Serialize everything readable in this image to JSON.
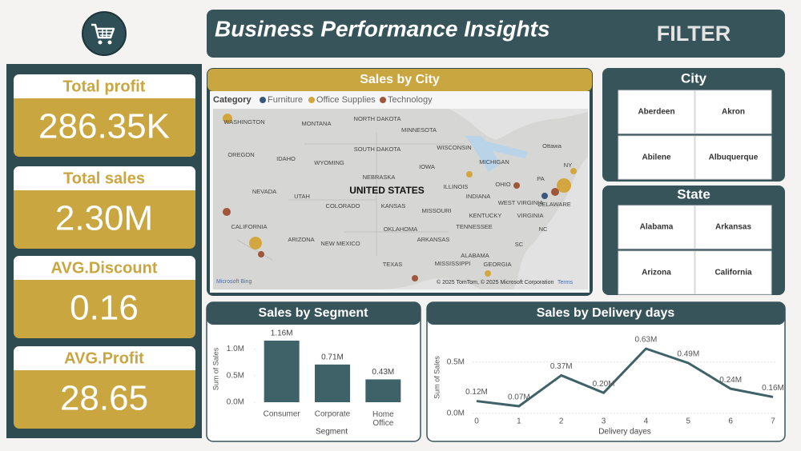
{
  "header": {
    "title": "Business Performance Insights",
    "filter": "FILTER"
  },
  "kpis": [
    {
      "label": "Total profit",
      "value": "286.35K"
    },
    {
      "label": "Total sales",
      "value": "2.30M"
    },
    {
      "label": "AVG.Discount",
      "value": "0.16"
    },
    {
      "label": "AVG.Profit",
      "value": "28.65"
    }
  ],
  "map": {
    "title": "Sales by City",
    "legend_title": "Category",
    "legend": [
      {
        "name": "Furniture",
        "color": "#39577a"
      },
      {
        "name": "Office Supplies",
        "color": "#d4a640"
      },
      {
        "name": "Technology",
        "color": "#a0563a"
      }
    ],
    "labels": [
      "WASHINGTON",
      "MONTANA",
      "NORTH DAKOTA",
      "MINNESOTA",
      "OREGON",
      "IDAHO",
      "SOUTH DAKOTA",
      "WISCONSIN",
      "Ottawa",
      "WYOMING",
      "MICHIGAN",
      "NEBRASKA",
      "IOWA",
      "NEVADA",
      "UTAH",
      "UNITED STATES",
      "ILLINOIS",
      "INDIANA",
      "OHIO",
      "PA",
      "NY",
      "COLORADO",
      "KANSAS",
      "MISSOURI",
      "WEST VIRGINIA",
      "KENTUCKY",
      "VIRGINIA",
      "DELAWARE",
      "CALIFORNIA",
      "OKLAHOMA",
      "TENNESSEE",
      "NC",
      "ARIZONA",
      "NEW MEXICO",
      "ARKANSAS",
      "SC",
      "TEXAS",
      "MISSISSIPPI",
      "ALABAMA",
      "GEORGIA"
    ],
    "attribution": "© 2025 TomTom, © 2025 Microsoft Corporation",
    "terms": "Terms",
    "provider": "Microsoft Bing"
  },
  "city_filter": {
    "title": "City",
    "options": [
      "Aberdeen",
      "Akron",
      "Abilene",
      "Albuquerque"
    ]
  },
  "state_filter": {
    "title": "State",
    "options": [
      "Alabama",
      "Arkansas",
      "Arizona",
      "California"
    ]
  },
  "chart_data": [
    {
      "type": "bar",
      "title": "Sales by Segment",
      "x_label": "Segment",
      "y_label": "Sum of Sales",
      "categories": [
        "Consumer",
        "Corporate",
        "Home Office"
      ],
      "values": [
        1160000,
        710000,
        430000
      ],
      "value_labels": [
        "1.16M",
        "0.71M",
        "0.43M"
      ],
      "color": "#3f6268",
      "ylim": [
        0,
        1250000
      ],
      "yticks": [
        {
          "value": 0,
          "label": "0.0M"
        },
        {
          "value": 500000,
          "label": "0.5M"
        },
        {
          "value": 1000000,
          "label": "1.0M"
        }
      ]
    },
    {
      "type": "line",
      "title": "Sales by Delivery days",
      "x_label": "Delivery dayes",
      "y_label": "Sum of Sales",
      "x": [
        0,
        1,
        2,
        3,
        4,
        5,
        6,
        7
      ],
      "values": [
        120000,
        70000,
        370000,
        200000,
        630000,
        490000,
        240000,
        160000
      ],
      "value_labels": [
        "0.12M",
        "0.07M",
        "0.37M",
        "0.20M",
        "0.63M",
        "0.49M",
        "0.24M",
        "0.16M"
      ],
      "color": "#3f6268",
      "xlim": [
        0,
        7
      ],
      "xticks": [
        0,
        1,
        2,
        3,
        4,
        5,
        6,
        7
      ],
      "ylim": [
        0,
        700000
      ],
      "yticks": [
        {
          "value": 0,
          "label": "0.0M"
        },
        {
          "value": 500000,
          "label": "0.5M"
        }
      ],
      "grid": true
    }
  ]
}
